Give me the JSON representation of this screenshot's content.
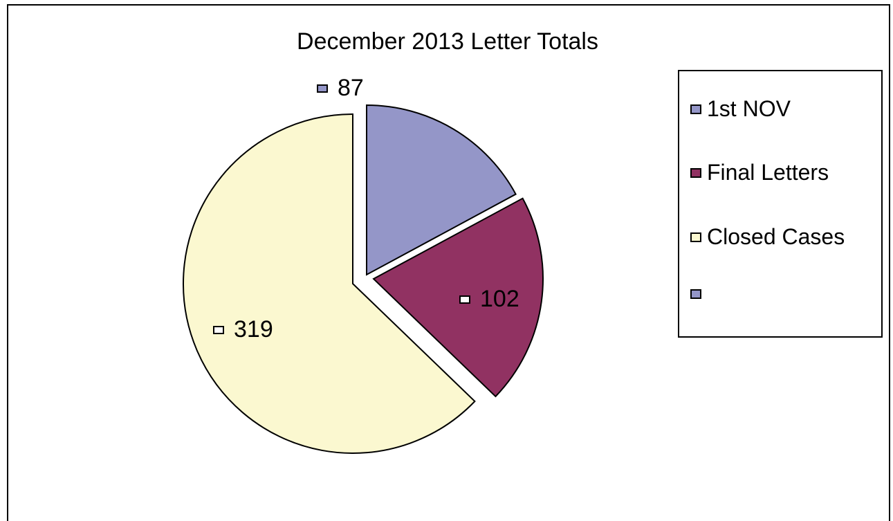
{
  "chart_data": {
    "type": "pie",
    "title": "December 2013 Letter Totals",
    "slices": [
      {
        "label": "1st NOV",
        "value": 87,
        "color": "#9496c8"
      },
      {
        "label": "Final Letters",
        "value": 102,
        "color": "#913262"
      },
      {
        "label": "Closed Cases",
        "value": 319,
        "color": "#fbf8d0"
      }
    ],
    "legend": {
      "placement": "right",
      "entries": [
        {
          "label": "1st NOV",
          "color": "#9496c8"
        },
        {
          "label": "Final Letters",
          "color": "#913262"
        },
        {
          "label": "Closed Cases",
          "color": "#fbf8d0"
        },
        {
          "label": "",
          "color": "#9496c8"
        }
      ]
    },
    "data_labels": [
      "87",
      "102",
      "319"
    ]
  }
}
